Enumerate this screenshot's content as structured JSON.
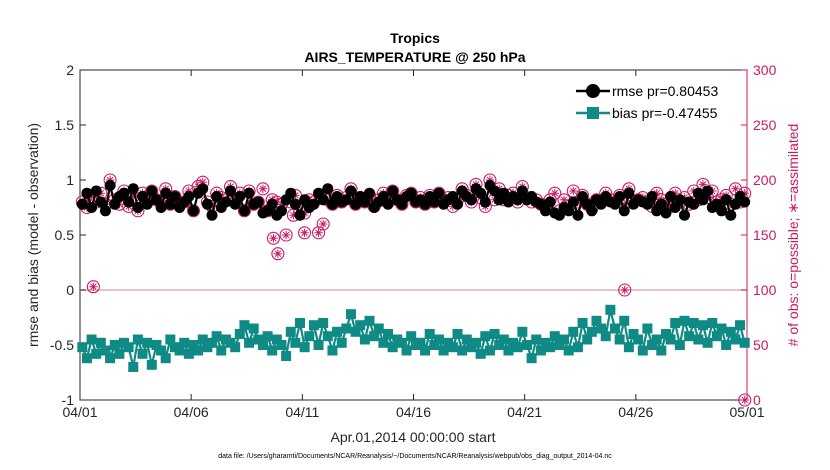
{
  "chart_data": {
    "type": "line",
    "title": "Tropics",
    "subtitle": "AIRS_TEMPERATURE @ 250 hPa",
    "xlabel": "Apr.01,2014 00:00:00 start",
    "ylabel_left": "rmse and bias (model - observation)",
    "ylabel_right": "# of obs: o=possible; ∗=assimilated",
    "x_tick_labels": [
      "04/01",
      "04/06",
      "04/11",
      "04/16",
      "04/21",
      "04/26",
      "05/01"
    ],
    "x_tick_days": [
      0,
      5,
      10,
      15,
      20,
      25,
      30
    ],
    "xlim": [
      0,
      30
    ],
    "ylim_left": [
      -1,
      2
    ],
    "ylim_right": [
      0,
      300
    ],
    "y_left_ticks": [
      -1,
      -0.5,
      0,
      0.5,
      1,
      1.5,
      2
    ],
    "y_left_tick_labels": [
      "-1",
      "-0.5",
      "0",
      "0.5",
      "1",
      "1.5",
      "2"
    ],
    "y_right_ticks": [
      0,
      50,
      100,
      150,
      200,
      250,
      300
    ],
    "y_right_tick_labels": [
      "0",
      "50",
      "100",
      "150",
      "200",
      "250",
      "300"
    ],
    "legend": [
      "rmse pr=0.80453",
      "bias pr=-0.47455"
    ],
    "footnote": "data file: /Users/gharamti/Documents/NCAR/Reanalysis/~/Documents/NCAR/Reanalysis/webpub/obs_diag_output_2014-04.nc",
    "colors": {
      "rmse": "#000000",
      "bias": "#0f8a84",
      "obs": "#cc1a66",
      "zero_line": "#d8b3b3"
    },
    "rmse_values": [
      0.78,
      0.88,
      0.75,
      0.9,
      0.8,
      0.72,
      0.95,
      0.78,
      0.85,
      0.88,
      0.8,
      0.92,
      0.75,
      0.85,
      0.78,
      0.9,
      0.82,
      0.75,
      0.88,
      0.78,
      0.85,
      0.75,
      0.8,
      0.85,
      0.72,
      0.88,
      0.92,
      0.78,
      0.68,
      0.85,
      0.75,
      0.8,
      0.9,
      0.78,
      0.85,
      0.72,
      0.88,
      0.78,
      0.8,
      0.7,
      0.72,
      0.78,
      0.68,
      0.72,
      0.82,
      0.88,
      0.78,
      0.68,
      0.82,
      0.75,
      0.78,
      0.88,
      0.82,
      0.92,
      0.78,
      0.85,
      0.8,
      0.82,
      0.9,
      0.78,
      0.85,
      0.8,
      0.88,
      0.75,
      0.8,
      0.85,
      0.78,
      0.9,
      0.82,
      0.78,
      0.85,
      0.88,
      0.8,
      0.82,
      0.78,
      0.85,
      0.8,
      0.88,
      0.78,
      0.82,
      0.85,
      0.78,
      0.9,
      0.85,
      0.82,
      0.92,
      0.88,
      0.8,
      0.95,
      0.9,
      0.82,
      0.88,
      0.8,
      0.85,
      0.82,
      0.9,
      0.82,
      0.85,
      0.8,
      0.78,
      0.72,
      0.8,
      0.7,
      0.68,
      0.75,
      0.72,
      0.8,
      0.68,
      0.85,
      0.78,
      0.72,
      0.82,
      0.78,
      0.85,
      0.8,
      0.78,
      0.85,
      0.72,
      0.88,
      0.78,
      0.82,
      0.8,
      0.78,
      0.85,
      0.72,
      0.78,
      0.7,
      0.85,
      0.75,
      0.82,
      0.68,
      0.8,
      0.78,
      0.88,
      0.82,
      0.9,
      0.75,
      0.78,
      0.72,
      0.82,
      0.68,
      0.78,
      0.85,
      0.8
    ],
    "bias_values": [
      -0.52,
      -0.62,
      -0.45,
      -0.58,
      -0.48,
      -0.55,
      -0.62,
      -0.5,
      -0.58,
      -0.48,
      -0.52,
      -0.7,
      -0.45,
      -0.58,
      -0.48,
      -0.68,
      -0.5,
      -0.55,
      -0.62,
      -0.45,
      -0.52,
      -0.55,
      -0.48,
      -0.58,
      -0.5,
      -0.55,
      -0.45,
      -0.52,
      -0.48,
      -0.42,
      -0.55,
      -0.45,
      -0.48,
      -0.52,
      -0.4,
      -0.32,
      -0.48,
      -0.35,
      -0.45,
      -0.5,
      -0.42,
      -0.55,
      -0.45,
      -0.5,
      -0.6,
      -0.38,
      -0.48,
      -0.3,
      -0.52,
      -0.42,
      -0.32,
      -0.5,
      -0.3,
      -0.42,
      -0.55,
      -0.38,
      -0.48,
      -0.35,
      -0.22,
      -0.38,
      -0.32,
      -0.45,
      -0.28,
      -0.42,
      -0.35,
      -0.48,
      -0.4,
      -0.52,
      -0.45,
      -0.48,
      -0.55,
      -0.42,
      -0.5,
      -0.48,
      -0.55,
      -0.4,
      -0.5,
      -0.45,
      -0.55,
      -0.48,
      -0.52,
      -0.4,
      -0.55,
      -0.45,
      -0.52,
      -0.48,
      -0.58,
      -0.42,
      -0.55,
      -0.4,
      -0.5,
      -0.45,
      -0.55,
      -0.48,
      -0.52,
      -0.38,
      -0.5,
      -0.62,
      -0.45,
      -0.55,
      -0.48,
      -0.52,
      -0.42,
      -0.5,
      -0.45,
      -0.55,
      -0.38,
      -0.52,
      -0.3,
      -0.45,
      -0.38,
      -0.28,
      -0.35,
      -0.42,
      -0.18,
      -0.35,
      -0.45,
      -0.28,
      -0.52,
      -0.4,
      -0.45,
      -0.55,
      -0.35,
      -0.5,
      -0.45,
      -0.55,
      -0.4,
      -0.45,
      -0.3,
      -0.5,
      -0.28,
      -0.42,
      -0.3,
      -0.45,
      -0.32,
      -0.48,
      -0.3,
      -0.42,
      -0.35,
      -0.5,
      -0.38,
      -0.45,
      -0.32,
      -0.48
    ],
    "obs_possible": [
      180,
      175,
      185,
      180,
      188,
      178,
      200,
      182,
      178,
      190,
      176,
      185,
      172,
      188,
      180,
      190,
      182,
      180,
      192,
      178,
      185,
      178,
      180,
      190,
      172,
      194,
      198,
      180,
      176,
      188,
      184,
      182,
      194,
      180,
      188,
      172,
      190,
      178,
      180,
      192,
      172,
      182,
      180,
      178,
      150,
      180,
      186,
      172,
      170,
      182,
      180,
      152,
      160,
      182,
      178,
      186,
      180,
      184,
      192,
      178,
      184,
      180,
      186,
      176,
      182,
      188,
      180,
      190,
      182,
      178,
      186,
      188,
      180,
      184,
      178,
      186,
      180,
      188,
      182,
      184,
      176,
      182,
      192,
      186,
      180,
      196,
      184,
      176,
      200,
      182,
      192,
      182,
      186,
      188,
      180,
      194,
      184,
      180,
      182,
      178,
      176,
      182,
      188,
      172,
      182,
      176,
      190,
      180,
      186,
      178,
      174,
      182,
      180,
      188,
      182,
      180,
      186,
      178,
      192,
      180,
      182,
      184,
      180,
      176,
      188,
      182,
      178,
      176,
      188,
      180,
      184,
      178,
      190,
      182,
      196,
      184,
      190,
      180,
      182,
      186,
      178,
      192,
      180,
      188
    ],
    "obs_special_possible": [
      [
        0.6,
        103
      ],
      [
        8.9,
        133
      ],
      [
        8.7,
        147
      ],
      [
        9.6,
        168
      ],
      [
        24.5,
        100
      ],
      [
        10.1,
        152
      ],
      [
        29.9,
        0
      ]
    ]
  }
}
